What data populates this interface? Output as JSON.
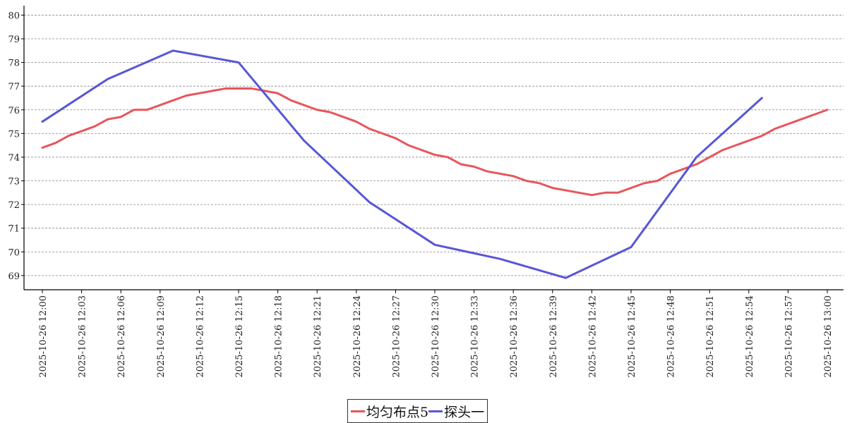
{
  "chart_data": {
    "type": "line",
    "x": [
      "2025-10-26 12:00",
      "2025-10-26 12:01",
      "2025-10-26 12:02",
      "2025-10-26 12:03",
      "2025-10-26 12:04",
      "2025-10-26 12:05",
      "2025-10-26 12:06",
      "2025-10-26 12:07",
      "2025-10-26 12:08",
      "2025-10-26 12:09",
      "2025-10-26 12:10",
      "2025-10-26 12:11",
      "2025-10-26 12:12",
      "2025-10-26 12:13",
      "2025-10-26 12:14",
      "2025-10-26 12:15",
      "2025-10-26 12:16",
      "2025-10-26 12:17",
      "2025-10-26 12:18",
      "2025-10-26 12:19",
      "2025-10-26 12:20",
      "2025-10-26 12:21",
      "2025-10-26 12:22",
      "2025-10-26 12:23",
      "2025-10-26 12:24",
      "2025-10-26 12:25",
      "2025-10-26 12:26",
      "2025-10-26 12:27",
      "2025-10-26 12:28",
      "2025-10-26 12:29",
      "2025-10-26 12:30",
      "2025-10-26 12:31",
      "2025-10-26 12:32",
      "2025-10-26 12:33",
      "2025-10-26 12:34",
      "2025-10-26 12:35",
      "2025-10-26 12:36",
      "2025-10-26 12:37",
      "2025-10-26 12:38",
      "2025-10-26 12:39",
      "2025-10-26 12:40",
      "2025-10-26 12:41",
      "2025-10-26 12:42",
      "2025-10-26 12:43",
      "2025-10-26 12:44",
      "2025-10-26 12:45",
      "2025-10-26 12:46",
      "2025-10-26 12:47",
      "2025-10-26 12:48",
      "2025-10-26 12:49",
      "2025-10-26 12:50",
      "2025-10-26 12:51",
      "2025-10-26 12:52",
      "2025-10-26 12:53",
      "2025-10-26 12:54",
      "2025-10-26 12:55",
      "2025-10-26 12:56",
      "2025-10-26 12:57",
      "2025-10-26 12:58",
      "2025-10-26 12:59",
      "2025-10-26 13:00"
    ],
    "x_tick_labels": [
      "2025-10-26 12:00",
      "2025-10-26 12:03",
      "2025-10-26 12:06",
      "2025-10-26 12:09",
      "2025-10-26 12:12",
      "2025-10-26 12:15",
      "2025-10-26 12:18",
      "2025-10-26 12:21",
      "2025-10-26 12:24",
      "2025-10-26 12:27",
      "2025-10-26 12:30",
      "2025-10-26 12:33",
      "2025-10-26 12:36",
      "2025-10-26 12:39",
      "2025-10-26 12:42",
      "2025-10-26 12:45",
      "2025-10-26 12:48",
      "2025-10-26 12:51",
      "2025-10-26 12:54",
      "2025-10-26 12:57",
      "2025-10-26 13:00"
    ],
    "y_ticks": [
      69,
      70,
      71,
      72,
      73,
      74,
      75,
      76,
      77,
      78,
      79,
      80
    ],
    "ylim": [
      68.4,
      80.4
    ],
    "grid": true,
    "legend": "bottom-center",
    "title": "",
    "xlabel": "",
    "ylabel": "",
    "series": [
      {
        "name": "均匀布点5",
        "color": "#e8555a",
        "x": [
          "2025-10-26 12:00",
          "2025-10-26 12:01",
          "2025-10-26 12:02",
          "2025-10-26 12:03",
          "2025-10-26 12:04",
          "2025-10-26 12:05",
          "2025-10-26 12:06",
          "2025-10-26 12:07",
          "2025-10-26 12:08",
          "2025-10-26 12:09",
          "2025-10-26 12:10",
          "2025-10-26 12:11",
          "2025-10-26 12:12",
          "2025-10-26 12:13",
          "2025-10-26 12:14",
          "2025-10-26 12:15",
          "2025-10-26 12:16",
          "2025-10-26 12:17",
          "2025-10-26 12:18",
          "2025-10-26 12:19",
          "2025-10-26 12:20",
          "2025-10-26 12:21",
          "2025-10-26 12:22",
          "2025-10-26 12:23",
          "2025-10-26 12:24",
          "2025-10-26 12:25",
          "2025-10-26 12:26",
          "2025-10-26 12:27",
          "2025-10-26 12:28",
          "2025-10-26 12:29",
          "2025-10-26 12:30",
          "2025-10-26 12:31",
          "2025-10-26 12:32",
          "2025-10-26 12:33",
          "2025-10-26 12:34",
          "2025-10-26 12:35",
          "2025-10-26 12:36",
          "2025-10-26 12:37",
          "2025-10-26 12:38",
          "2025-10-26 12:39",
          "2025-10-26 12:40",
          "2025-10-26 12:41",
          "2025-10-26 12:42",
          "2025-10-26 12:43",
          "2025-10-26 12:44",
          "2025-10-26 12:45",
          "2025-10-26 12:46",
          "2025-10-26 12:47",
          "2025-10-26 12:48",
          "2025-10-26 12:49",
          "2025-10-26 12:50",
          "2025-10-26 12:51",
          "2025-10-26 12:52",
          "2025-10-26 12:53",
          "2025-10-26 12:54",
          "2025-10-26 12:55",
          "2025-10-26 12:56",
          "2025-10-26 12:57",
          "2025-10-26 12:58",
          "2025-10-26 12:59",
          "2025-10-26 13:00"
        ],
        "values": [
          74.4,
          74.6,
          74.9,
          75.1,
          75.3,
          75.6,
          75.7,
          76.0,
          76.0,
          76.2,
          76.4,
          76.6,
          76.7,
          76.8,
          76.9,
          76.9,
          76.9,
          76.8,
          76.7,
          76.4,
          76.2,
          76.0,
          75.9,
          75.7,
          75.5,
          75.2,
          75.0,
          74.8,
          74.5,
          74.3,
          74.1,
          74.0,
          73.7,
          73.6,
          73.4,
          73.3,
          73.2,
          73.0,
          72.9,
          72.7,
          72.6,
          72.5,
          72.4,
          72.5,
          72.5,
          72.7,
          72.9,
          73.0,
          73.3,
          73.5,
          73.7,
          74.0,
          74.3,
          74.5,
          74.7,
          74.9,
          75.2,
          75.4,
          75.6,
          75.8,
          76.0
        ]
      },
      {
        "name": "探头一",
        "color": "#5856d6",
        "x": [
          "2025-10-26 12:00",
          "2025-10-26 12:05",
          "2025-10-26 12:10",
          "2025-10-26 12:15",
          "2025-10-26 12:20",
          "2025-10-26 12:25",
          "2025-10-26 12:30",
          "2025-10-26 12:35",
          "2025-10-26 12:40",
          "2025-10-26 12:45",
          "2025-10-26 12:50",
          "2025-10-26 12:55"
        ],
        "values": [
          75.5,
          77.3,
          78.5,
          78.0,
          74.7,
          72.1,
          70.3,
          69.7,
          68.9,
          70.2,
          74.0,
          76.5
        ]
      }
    ]
  }
}
